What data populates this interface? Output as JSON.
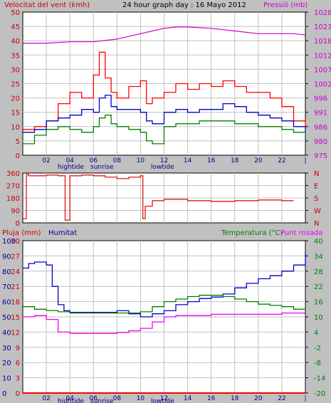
{
  "header": {
    "wind_label": "Velocitat del vent (kmh)",
    "title": "24 hour graph day : 16 Mayo 2012",
    "pressure_label": "Pressió (mb)"
  },
  "lower_header": {
    "rain_label": "Pluja (mm)",
    "humidity_label": "Humitat",
    "temperature_label": "Temperatura (°C)",
    "dewpoint_label": "Punt rosada"
  },
  "colors": {
    "background": "#c0c0c0",
    "plot_bg": "#ffffff",
    "grid": "#c0c0c0",
    "wind_gust": "#ff0000",
    "wind_avg": "#0000cc",
    "wind_min": "#008000",
    "pressure": "#cc00cc",
    "direction": "#dd0000",
    "humidity": "#0000cc",
    "temperature": "#008000",
    "dewpoint": "#ee00ee",
    "rain": "#ff0000",
    "left_axis_text": "#cc0000",
    "pressure_axis_text": "#cc00cc",
    "humidity_axis_text": "#000099",
    "temp_axis_text": "#008000"
  },
  "x_ticks": [
    "02",
    "04",
    "06",
    "08",
    "10",
    "12",
    "14",
    "16",
    "18",
    "20",
    "22",
    "|"
  ],
  "tide_labels": {
    "hightide": "hightide",
    "sunrise": "sunrise",
    "lowtide": "lowtide"
  },
  "chart_data": [
    {
      "type": "line",
      "name": "wind-pressure",
      "x_unit": "hour",
      "xlim": [
        0,
        24
      ],
      "y_left_label": "Velocitat del vent (kmh)",
      "y_left_ticks": [
        "0",
        "5",
        "10",
        "15",
        "20",
        "25",
        "30",
        "35",
        "40",
        "45",
        "50"
      ],
      "y_left_lim": [
        0,
        50
      ],
      "y_right_label": "Pressió (mb)",
      "y_right_ticks": [
        "975",
        "980",
        "986",
        "991",
        "996",
        "1002",
        "1007",
        "1012",
        "1018",
        "1023",
        "1028"
      ],
      "y_right_lim": [
        975,
        1028
      ],
      "series": [
        {
          "name": "gust",
          "x": [
            0,
            1,
            2,
            3,
            4,
            5,
            6,
            6.5,
            7,
            7.5,
            8,
            9,
            10,
            10.5,
            11,
            12,
            13,
            14,
            15,
            16,
            17,
            18,
            19,
            20,
            21,
            22,
            23,
            24
          ],
          "values": [
            9,
            10,
            12,
            18,
            22,
            20,
            28,
            36,
            27,
            22,
            20,
            24,
            26,
            18,
            20,
            22,
            25,
            23,
            25,
            24,
            26,
            24,
            22,
            22,
            20,
            17,
            12,
            10
          ]
        },
        {
          "name": "average",
          "x": [
            0,
            1,
            2,
            3,
            4,
            5,
            6,
            6.5,
            7,
            7.5,
            8,
            9,
            10,
            10.5,
            11,
            12,
            13,
            14,
            15,
            16,
            17,
            18,
            19,
            20,
            21,
            22,
            23,
            24
          ],
          "values": [
            8,
            9,
            12,
            13,
            14,
            16,
            15,
            20,
            21,
            17,
            16,
            16,
            15,
            12,
            11,
            15,
            16,
            15,
            16,
            16,
            18,
            17,
            15,
            14,
            13,
            12,
            10,
            8
          ]
        },
        {
          "name": "minimum",
          "x": [
            0,
            1,
            2,
            3,
            4,
            5,
            6,
            6.5,
            7,
            7.5,
            8,
            9,
            10,
            10.5,
            11,
            12,
            13,
            14,
            15,
            16,
            17,
            18,
            19,
            20,
            21,
            22,
            23,
            24
          ],
          "values": [
            4,
            7,
            9,
            10,
            9,
            8,
            10,
            13,
            14,
            11,
            10,
            9,
            8,
            5,
            4,
            10,
            11,
            11,
            12,
            12,
            12,
            11,
            11,
            10,
            10,
            9,
            8,
            7
          ]
        },
        {
          "name": "pressure",
          "axis": "right",
          "x": [
            0,
            2,
            4,
            6,
            8,
            10,
            11,
            12,
            13,
            14,
            16,
            18,
            20,
            22,
            23,
            24
          ],
          "values": [
            1016.5,
            1016.5,
            1017,
            1017,
            1018,
            1020,
            1021,
            1022,
            1022.5,
            1022.5,
            1022,
            1021,
            1020,
            1020,
            1020,
            1019.5
          ]
        }
      ]
    },
    {
      "type": "line",
      "name": "wind-direction",
      "x_unit": "hour",
      "xlim": [
        0,
        24
      ],
      "y_left_ticks": [
        "0",
        "90",
        "180",
        "270",
        "360"
      ],
      "y_left_lim": [
        0,
        360
      ],
      "y_right_ticks": [
        "N",
        "W",
        "S",
        "E",
        "N"
      ],
      "series": [
        {
          "name": "direction",
          "x": [
            0,
            0.3,
            0.5,
            1,
            2,
            3,
            3.5,
            3.6,
            3.8,
            4,
            4.1,
            5,
            6,
            7,
            8,
            9,
            10,
            10.2,
            10.4,
            11,
            12,
            14,
            16,
            18,
            20,
            22,
            23
          ],
          "values": [
            30,
            350,
            340,
            340,
            345,
            340,
            340,
            20,
            20,
            340,
            340,
            345,
            340,
            330,
            320,
            330,
            340,
            30,
            120,
            160,
            170,
            160,
            155,
            160,
            165,
            160,
            160
          ]
        }
      ]
    },
    {
      "type": "line",
      "name": "humidity-temperature",
      "x_unit": "hour",
      "xlim": [
        0,
        24
      ],
      "y_left_label": "Pluja (mm)",
      "y_left_ticks": [
        "0",
        "3",
        "6",
        "9",
        "12",
        "15",
        "18",
        "21",
        "24",
        "27",
        "30"
      ],
      "y_left_lim": [
        0,
        30
      ],
      "y_humidity_label": "Humitat",
      "y_humidity_ticks": [
        "0",
        "10",
        "20",
        "30",
        "40",
        "50",
        "60",
        "70",
        "80",
        "90",
        "100"
      ],
      "y_humidity_lim": [
        0,
        100
      ],
      "y_right_label": "Temperatura (°C)",
      "y_right_ticks": [
        "-20",
        "-14",
        "-8",
        "-2",
        "4",
        "10",
        "16",
        "22",
        "28",
        "34",
        "40"
      ],
      "y_right_lim": [
        -20,
        40
      ],
      "series": [
        {
          "name": "humidity",
          "x": [
            0,
            0.5,
            1,
            2,
            2.5,
            3,
            3.5,
            4,
            6,
            8,
            9,
            10,
            11,
            12,
            13,
            14,
            15,
            16,
            17,
            18,
            19,
            20,
            21,
            22,
            23,
            24
          ],
          "values": [
            82,
            85,
            86,
            84,
            70,
            58,
            54,
            53,
            53,
            54,
            52,
            50,
            52,
            54,
            58,
            60,
            62,
            63,
            65,
            69,
            72,
            75,
            77,
            80,
            84,
            92
          ]
        },
        {
          "name": "temperature",
          "x": [
            0,
            1,
            2,
            3,
            4,
            5,
            6,
            7,
            8,
            9,
            10,
            11,
            12,
            13,
            14,
            15,
            16,
            17,
            18,
            19,
            20,
            21,
            22,
            23,
            24
          ],
          "values": [
            14,
            13,
            12.5,
            12,
            11.5,
            11.5,
            11.5,
            11.5,
            11.5,
            11.5,
            12,
            14,
            16,
            17,
            18,
            18.5,
            18.5,
            18,
            17,
            16,
            15,
            14.5,
            14,
            13,
            12.5
          ]
        },
        {
          "name": "dewpoint",
          "x": [
            0,
            1,
            2,
            3,
            4,
            5,
            6,
            7,
            8,
            9,
            10,
            11,
            12,
            13,
            14,
            16,
            18,
            20,
            22,
            24
          ],
          "values": [
            10,
            10.5,
            9,
            4,
            3.5,
            3.5,
            3.5,
            3.5,
            3.8,
            4.5,
            5.5,
            8,
            10,
            10.5,
            10.5,
            11,
            11,
            11,
            11.5,
            11.5
          ]
        },
        {
          "name": "rain",
          "axis": "left",
          "x": [
            0,
            24
          ],
          "values": [
            0,
            0
          ]
        }
      ]
    }
  ]
}
